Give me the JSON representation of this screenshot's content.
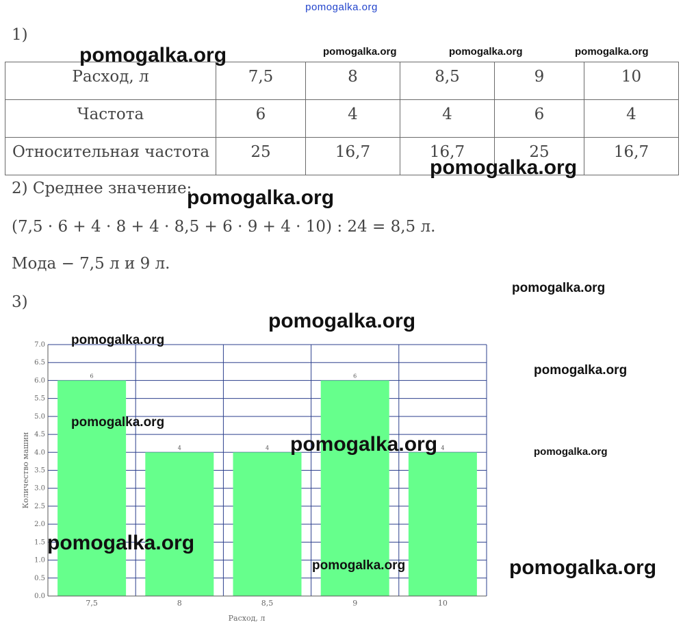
{
  "site_header": "pomogalka.org",
  "watermark": "pomogalka.org",
  "part1": {
    "number": "1)",
    "table": {
      "rows": [
        {
          "label": "Расход, л",
          "values": [
            "7,5",
            "8",
            "8,5",
            "9",
            "10"
          ]
        },
        {
          "label": "Частота",
          "values": [
            "6",
            "4",
            "4",
            "6",
            "4"
          ]
        },
        {
          "label": "Относительная частота",
          "values": [
            "25",
            "16,7",
            "16,7",
            "25",
            "16,7"
          ]
        }
      ]
    }
  },
  "part2": {
    "heading": "2) Среднее значение:",
    "formula": "(7,5 · 6 + 4 · 8 + 4 · 8,5 + 6 · 9 + 4 · 10) : 24 = 8,5 л.",
    "mode": "Мода − 7,5 л  и  9 л."
  },
  "part3": {
    "number": "3)"
  },
  "chart_data": {
    "type": "bar",
    "categories": [
      "7,5",
      "8",
      "8,5",
      "9",
      "10"
    ],
    "values": [
      6,
      4,
      4,
      6,
      4
    ],
    "data_labels": [
      "6",
      "4",
      "4",
      "6",
      "4"
    ],
    "xlabel": "Расход, л",
    "ylabel": "Количество машин",
    "ylim": [
      0,
      7
    ],
    "yticks": [
      "0.0",
      "0.5",
      "1.0",
      "1.5",
      "2.0",
      "2.5",
      "3.0",
      "3.5",
      "4.0",
      "4.5",
      "5.0",
      "5.5",
      "6.0",
      "6.5",
      "7.0"
    ],
    "bar_color": "#66ff8c",
    "grid": true
  }
}
